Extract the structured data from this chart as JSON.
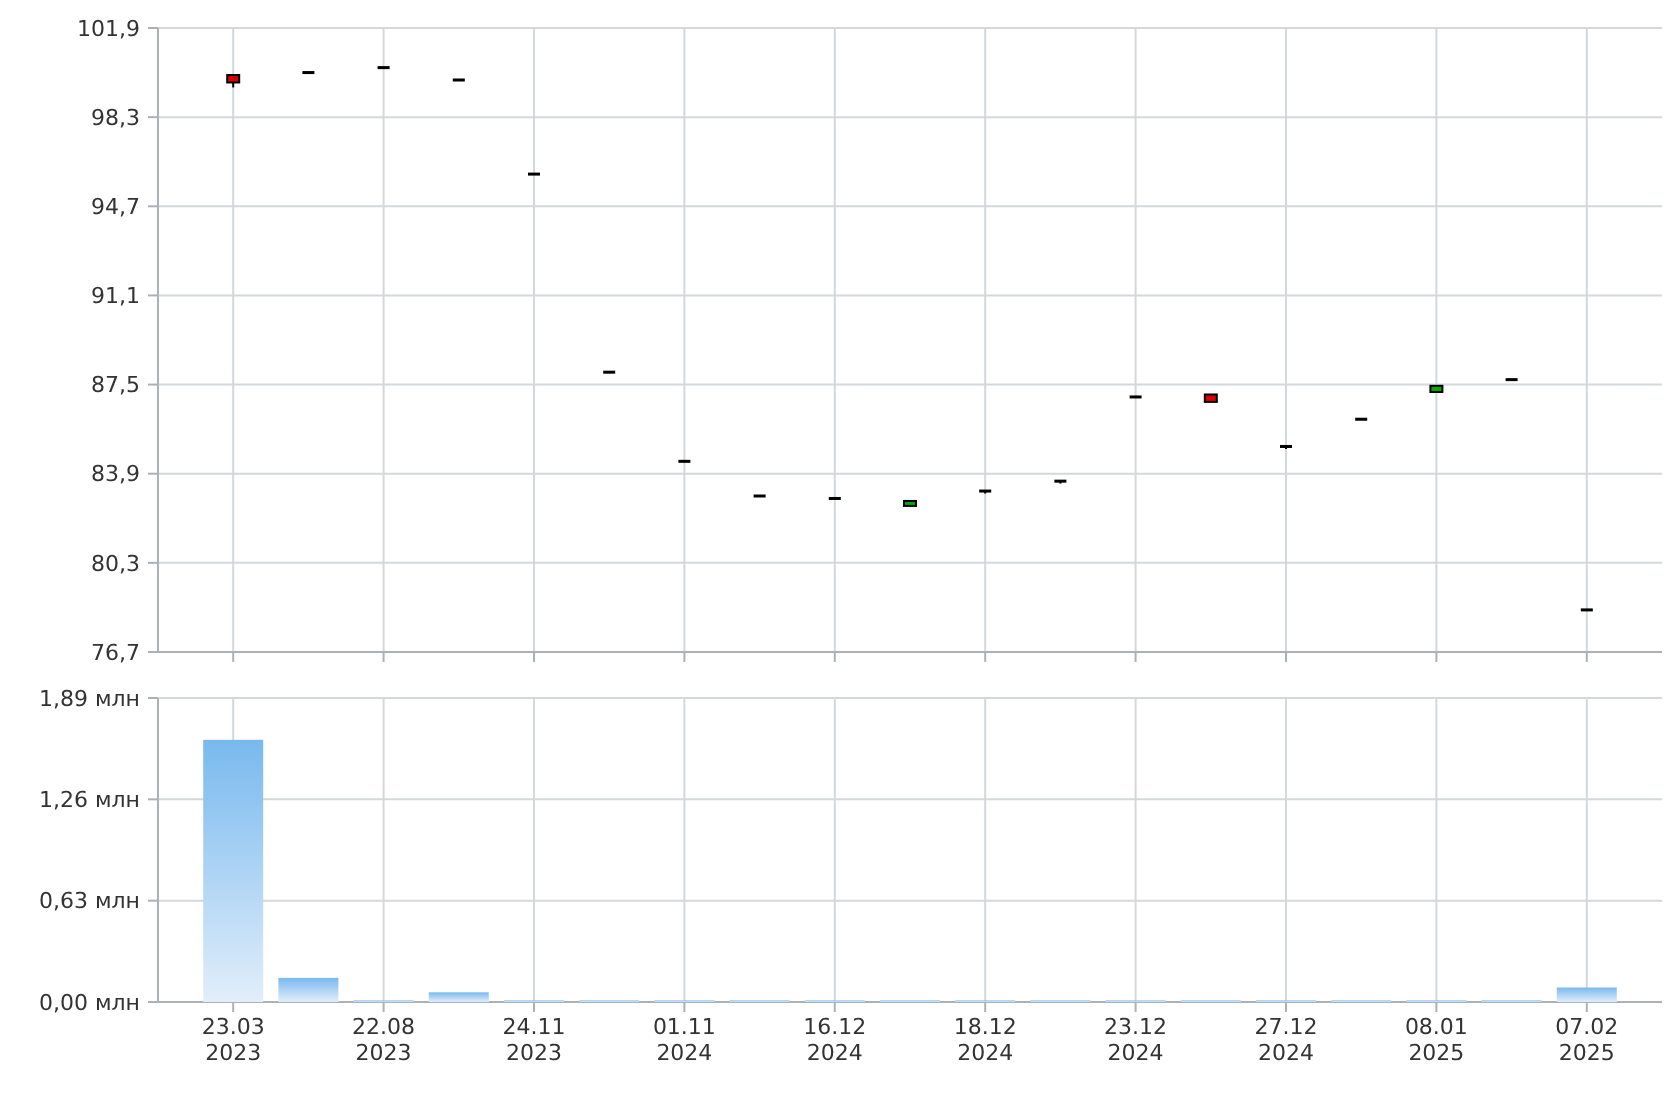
{
  "chart_data": [
    {
      "type": "candlestick",
      "categories": [
        null,
        null,
        null,
        null,
        null,
        null,
        null,
        null,
        null,
        null,
        null,
        null,
        null,
        null,
        null,
        null,
        null,
        null,
        null
      ],
      "ohlc": [
        [
          100.0,
          100.0,
          99.5,
          99.7
        ],
        [
          100.1,
          100.1,
          100.1,
          100.1
        ],
        [
          100.3,
          100.3,
          100.3,
          100.3
        ],
        [
          99.8,
          99.8,
          99.8,
          99.8
        ],
        [
          96.0,
          96.0,
          96.0,
          96.0
        ],
        [
          88.0,
          88.0,
          88.0,
          88.0
        ],
        [
          84.4,
          84.4,
          84.4,
          84.4
        ],
        [
          83.0,
          83.0,
          83.0,
          83.0
        ],
        [
          82.9,
          82.9,
          82.9,
          82.9
        ],
        [
          82.6,
          82.8,
          82.6,
          82.8
        ],
        [
          83.2,
          83.2,
          83.1,
          83.2
        ],
        [
          83.6,
          83.6,
          83.5,
          83.6
        ],
        [
          87.0,
          87.0,
          87.0,
          87.0
        ],
        [
          87.1,
          87.1,
          86.8,
          86.8
        ],
        [
          85.0,
          85.0,
          84.9,
          85.0
        ],
        [
          86.1,
          86.1,
          86.1,
          86.1
        ],
        [
          87.2,
          87.45,
          87.2,
          87.45
        ],
        [
          87.7,
          87.7,
          87.7,
          87.7
        ],
        [
          78.4,
          78.4,
          78.4,
          78.4
        ]
      ],
      "colors": [
        "#dd0000",
        "#000000",
        "#000000",
        "#000000",
        "#000000",
        "#000000",
        "#000000",
        "#000000",
        "#000000",
        "#00aa00",
        "#000000",
        "#000000",
        "#000000",
        "#dd0000",
        "#000000",
        "#000000",
        "#00aa00",
        "#000000",
        "#000000"
      ],
      "ylim": [
        76.7,
        101.9
      ],
      "yticks": [
        {
          "value": 76.7,
          "label": "76,7"
        },
        {
          "value": 80.3,
          "label": "80,3"
        },
        {
          "value": 83.9,
          "label": "83,9"
        },
        {
          "value": 87.5,
          "label": "87,5"
        },
        {
          "value": 91.1,
          "label": "91,1"
        },
        {
          "value": 94.7,
          "label": "94,7"
        },
        {
          "value": 98.3,
          "label": "98,3"
        },
        {
          "value": 101.9,
          "label": "101,9"
        }
      ],
      "grid": true,
      "tick_labels": "y"
    },
    {
      "type": "bar",
      "categories": [
        "23.03 2023",
        null,
        "22.08 2023",
        null,
        "24.11 2023",
        null,
        "01.11 2024",
        null,
        "16.12 2024",
        null,
        "18.12 2024",
        null,
        "23.12 2024",
        null,
        "27.12 2024",
        null,
        "08.01 2025",
        null,
        "07.02 2025"
      ],
      "values": [
        1.63,
        0.15,
        0.01,
        0.06,
        0.01,
        0.01,
        0.01,
        0.01,
        0.01,
        0.01,
        0.01,
        0.01,
        0.01,
        0.01,
        0.01,
        0.01,
        0.01,
        0.01,
        0.09
      ],
      "color": "#78b9ee",
      "ylim": [
        0,
        1.89
      ],
      "yticks": [
        {
          "value": 0,
          "label": "0,00 млн"
        },
        {
          "value": 0.63,
          "label": "0,63 млн"
        },
        {
          "value": 1.26,
          "label": "1,26 млн"
        },
        {
          "value": 1.89,
          "label": "1,89 млн"
        }
      ],
      "grid": true
    }
  ]
}
